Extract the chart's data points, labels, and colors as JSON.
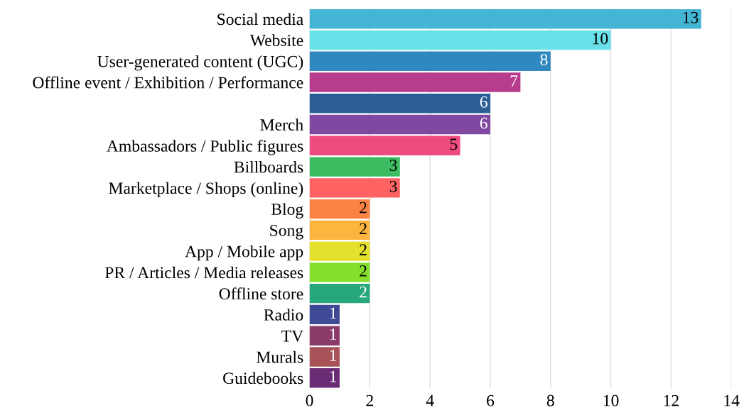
{
  "chart_data": {
    "type": "bar",
    "orientation": "horizontal",
    "categories": [
      "Social media",
      "Website",
      "User-generated content (UGC)",
      "Offline event / Exhibition / Performance",
      null,
      "Merch",
      "Ambassadors / Public figures",
      "Billboards",
      "Marketplace / Shops (online)",
      "Blog",
      "Song",
      "App / Mobile app",
      "PR / Articles / Media releases",
      "Offline store",
      "Radio",
      "TV",
      "Murals",
      "Guidebooks"
    ],
    "values": [
      13,
      10,
      8,
      7,
      6,
      6,
      5,
      3,
      3,
      2,
      2,
      2,
      2,
      2,
      1,
      1,
      1,
      1
    ],
    "colors": [
      "#45b5d6",
      "#6ae0e8",
      "#2f88bf",
      "#b83c8e",
      "#2c5e96",
      "#8048a0",
      "#ee4b7f",
      "#3bbc60",
      "#fe6262",
      "#fd8344",
      "#feb53f",
      "#e3e02e",
      "#83df2b",
      "#28a87a",
      "#3e4a96",
      "#8c3a6a",
      "#a85357",
      "#6a2c74"
    ],
    "xlim": [
      0,
      14
    ],
    "xticks": [
      0,
      2,
      4,
      6,
      8,
      10,
      12,
      14
    ],
    "grid": "x",
    "data_labels": true
  }
}
